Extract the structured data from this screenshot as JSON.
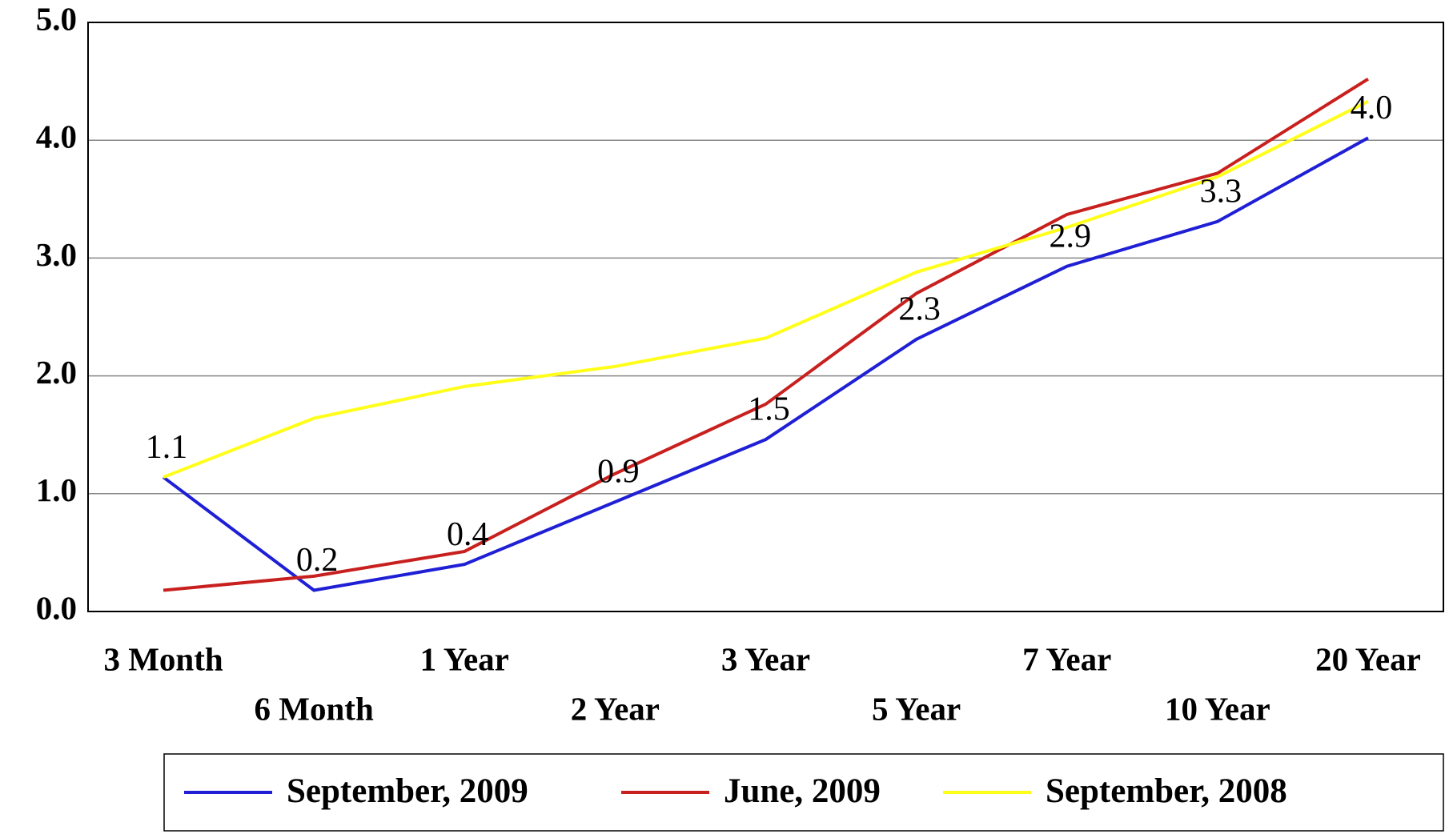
{
  "chart_data": {
    "type": "line",
    "categories": [
      "3 Month",
      "6 Month",
      "1 Year",
      "2 Year",
      "3 Year",
      "5 Year",
      "7 Year",
      "10 Year",
      "20 Year"
    ],
    "series": [
      {
        "name": "September, 2009",
        "color": "#1f1fd6",
        "values": [
          1.14,
          0.18,
          0.4,
          0.93,
          1.46,
          2.31,
          2.93,
          3.31,
          4.02
        ],
        "value_labels": [
          "1.1",
          "0.2",
          "0.4",
          "0.9",
          "1.5",
          "2.3",
          "2.9",
          "3.3",
          "4.0"
        ]
      },
      {
        "name": "June, 2009",
        "color": "#c8201e",
        "values": [
          0.18,
          0.3,
          0.51,
          1.17,
          1.76,
          2.7,
          3.37,
          3.72,
          4.52
        ]
      },
      {
        "name": "September, 2008",
        "color": "#ffff1a",
        "values": [
          1.14,
          1.64,
          1.91,
          2.08,
          2.32,
          2.88,
          3.26,
          3.69,
          4.33
        ]
      }
    ],
    "ylim": [
      0,
      5
    ],
    "yticks": [
      {
        "value": 0,
        "label": "0.0"
      },
      {
        "value": 1,
        "label": "1.0"
      },
      {
        "value": 2,
        "label": "2.0"
      },
      {
        "value": 3,
        "label": "3.0"
      },
      {
        "value": 4,
        "label": "4.0"
      },
      {
        "value": 5,
        "label": "5.0"
      }
    ],
    "grid": true,
    "legend": "bottom"
  }
}
